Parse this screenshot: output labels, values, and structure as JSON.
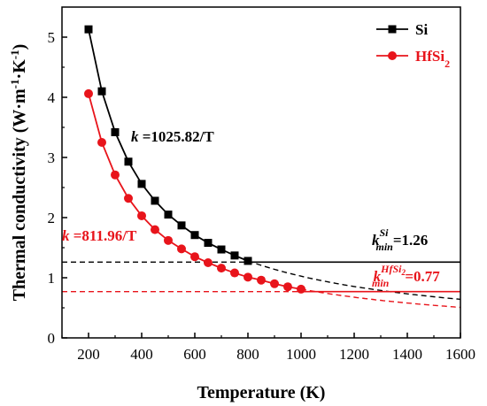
{
  "chart_data": {
    "type": "line",
    "xlabel": "Temperature (K)",
    "ylabel": {
      "main": "Thermal conductivity (W·m",
      "sup1": "-1",
      "mid": "·K",
      "sup2": "-1",
      "close": ")"
    },
    "xlim": [
      100,
      1600
    ],
    "ylim": [
      0,
      5.5
    ],
    "xticks": [
      "200",
      "400",
      "600",
      "800",
      "1000",
      "1200",
      "1400",
      "1600"
    ],
    "yticks": [
      "0",
      "1",
      "2",
      "3",
      "4",
      "5"
    ],
    "series": [
      {
        "name": "Si",
        "color": "#000000",
        "marker": "square",
        "x": [
          200,
          250,
          300,
          350,
          400,
          450,
          500,
          550,
          600,
          650,
          700,
          750,
          800
        ],
        "y": [
          5.13,
          4.1,
          3.42,
          2.93,
          2.56,
          2.28,
          2.05,
          1.87,
          1.71,
          1.58,
          1.47,
          1.37,
          1.28
        ]
      },
      {
        "name": "HfSi",
        "name_sub": "2",
        "color": "#e8141b",
        "marker": "circle",
        "x": [
          200,
          250,
          300,
          350,
          400,
          450,
          500,
          550,
          600,
          650,
          700,
          750,
          800,
          850,
          900,
          950,
          1000
        ],
        "y": [
          4.06,
          3.25,
          2.71,
          2.32,
          2.03,
          1.8,
          1.62,
          1.48,
          1.35,
          1.25,
          1.16,
          1.08,
          1.01,
          0.96,
          0.9,
          0.85,
          0.81
        ]
      }
    ],
    "fits": [
      {
        "series": "Si",
        "coef": 1025.82,
        "label_k": "k",
        "label_rest": " =1025.82/T",
        "color": "#000000"
      },
      {
        "series": "HfSi2",
        "coef": 811.96,
        "label_k": "k",
        "label_rest": " =811.96/T",
        "color": "#e8141b"
      }
    ],
    "kmin": [
      {
        "value": 1.26,
        "k": "k",
        "sub": "min",
        "sup": "Si",
        "rest": "=1.26",
        "color": "#000000"
      },
      {
        "value": 0.77,
        "k": "k",
        "sub": "min",
        "sup": "HfSi",
        "sup_sub": "2",
        "rest": "=0.77",
        "color": "#e8141b"
      }
    ],
    "legend": "top-right",
    "grid": false
  }
}
